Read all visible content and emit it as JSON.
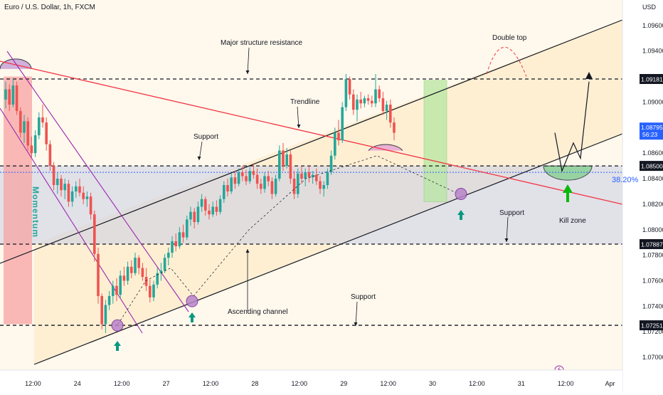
{
  "header": {
    "title": "Euro / U.S. Dollar, 1h, FXCM",
    "currency": "USD"
  },
  "colors": {
    "bull": "#26a69a",
    "bear": "#ef5350",
    "trendline": "#f23645",
    "channel": "#131722",
    "momentum_fill": "#f7a3a3",
    "momentum_label": "#26a69a",
    "demand_fill": "#b7e7a1",
    "zone_fill": "#c8cde6",
    "wedge": "#9c27b0",
    "arrow_up": "#089981",
    "kill_arrow": "#0bb80b",
    "fib_line": "#2962ff",
    "price_tag": "#131722",
    "current_tag": "#2962ff",
    "lightning": "#9c27b0"
  },
  "chart_data": {
    "type": "candlestick",
    "symbol": "Euro / U.S. Dollar",
    "interval": "1h",
    "exchange": "FXCM",
    "ylim": [
      1.069,
      1.098
    ],
    "y_ticks": [
      "1.09600",
      "1.09400",
      "1.09000",
      "1.08600",
      "1.08400",
      "1.08200",
      "1.08000",
      "1.07800",
      "1.07600",
      "1.07400",
      "1.07200",
      "1.07000"
    ],
    "y_tick_values": [
      1.096,
      1.094,
      1.09,
      1.086,
      1.084,
      1.082,
      1.08,
      1.078,
      1.076,
      1.074,
      1.072,
      1.07
    ],
    "x_ticks": [
      "12:00",
      "24",
      "12:00",
      "27",
      "12:00",
      "28",
      "12:00",
      "29",
      "12:00",
      "30",
      "12:00",
      "31",
      "12:00",
      "Apr"
    ],
    "x_tick_positions": [
      2,
      14,
      26,
      38,
      50,
      62,
      74,
      86,
      98,
      110,
      122,
      134,
      146,
      158
    ],
    "candles_ohlc": [
      [
        1.0902,
        1.0916,
        1.0895,
        1.091
      ],
      [
        1.091,
        1.0914,
        1.0893,
        1.0898
      ],
      [
        1.0898,
        1.0918,
        1.0896,
        1.0913
      ],
      [
        1.0913,
        1.0916,
        1.089,
        1.0893
      ],
      [
        1.0893,
        1.0896,
        1.0872,
        1.0876
      ],
      [
        1.0876,
        1.089,
        1.0868,
        1.0885
      ],
      [
        1.0885,
        1.0888,
        1.0862,
        1.0866
      ],
      [
        1.0866,
        1.0873,
        1.0856,
        1.086
      ],
      [
        1.086,
        1.0878,
        1.0857,
        1.0874
      ],
      [
        1.0874,
        1.0892,
        1.0871,
        1.0888
      ],
      [
        1.0888,
        1.0898,
        1.088,
        1.0884
      ],
      [
        1.0884,
        1.0888,
        1.0862,
        1.0867
      ],
      [
        1.0867,
        1.087,
        1.0846,
        1.085
      ],
      [
        1.085,
        1.0853,
        1.0831,
        1.0835
      ],
      [
        1.0835,
        1.0845,
        1.0828,
        1.084
      ],
      [
        1.084,
        1.0843,
        1.0826,
        1.0831
      ],
      [
        1.0831,
        1.084,
        1.0824,
        1.0836
      ],
      [
        1.0836,
        1.0839,
        1.0818,
        1.0822
      ],
      [
        1.0822,
        1.0834,
        1.0818,
        1.083
      ],
      [
        1.083,
        1.0838,
        1.0825,
        1.0834
      ],
      [
        1.0834,
        1.084,
        1.0826,
        1.0829
      ],
      [
        1.0829,
        1.0834,
        1.082,
        1.0824
      ],
      [
        1.0824,
        1.083,
        1.0818,
        1.0826
      ],
      [
        1.0826,
        1.0829,
        1.0808,
        1.0812
      ],
      [
        1.0812,
        1.0815,
        1.0775,
        1.0781
      ],
      [
        1.0781,
        1.0786,
        1.0742,
        1.0748
      ],
      [
        1.0748,
        1.075,
        1.0722,
        1.0726
      ],
      [
        1.0726,
        1.0745,
        1.0719,
        1.0741
      ],
      [
        1.0741,
        1.0752,
        1.0737,
        1.0748
      ],
      [
        1.0748,
        1.076,
        1.0742,
        1.0756
      ],
      [
        1.0756,
        1.0762,
        1.0744,
        1.0749
      ],
      [
        1.0749,
        1.0768,
        1.0746,
        1.0764
      ],
      [
        1.0764,
        1.0771,
        1.0756,
        1.076
      ],
      [
        1.076,
        1.0775,
        1.0757,
        1.0771
      ],
      [
        1.0771,
        1.0776,
        1.0762,
        1.0766
      ],
      [
        1.0766,
        1.0782,
        1.0764,
        1.0778
      ],
      [
        1.0778,
        1.078,
        1.0765,
        1.077
      ],
      [
        1.077,
        1.0774,
        1.076,
        1.0763
      ],
      [
        1.0763,
        1.077,
        1.0752,
        1.0756
      ],
      [
        1.0756,
        1.0761,
        1.0743,
        1.0747
      ],
      [
        1.0747,
        1.076,
        1.0744,
        1.0757
      ],
      [
        1.0757,
        1.077,
        1.0754,
        1.0766
      ],
      [
        1.0766,
        1.0774,
        1.076,
        1.0768
      ],
      [
        1.0768,
        1.0781,
        1.0766,
        1.0778
      ],
      [
        1.0778,
        1.0786,
        1.0772,
        1.0782
      ],
      [
        1.0782,
        1.0795,
        1.0778,
        1.0791
      ],
      [
        1.0791,
        1.0797,
        1.0783,
        1.0787
      ],
      [
        1.0787,
        1.0802,
        1.0785,
        1.0798
      ],
      [
        1.0798,
        1.0804,
        1.079,
        1.0794
      ],
      [
        1.0794,
        1.0811,
        1.0792,
        1.0808
      ],
      [
        1.0808,
        1.0818,
        1.0803,
        1.0814
      ],
      [
        1.0814,
        1.0817,
        1.0801,
        1.0806
      ],
      [
        1.0806,
        1.0822,
        1.0804,
        1.0818
      ],
      [
        1.0818,
        1.0828,
        1.0814,
        1.0824
      ],
      [
        1.0824,
        1.0826,
        1.0811,
        1.0815
      ],
      [
        1.0815,
        1.082,
        1.0808,
        1.0812
      ],
      [
        1.0812,
        1.0822,
        1.081,
        1.0818
      ],
      [
        1.0818,
        1.0823,
        1.0811,
        1.0814
      ],
      [
        1.0814,
        1.0827,
        1.0812,
        1.0824
      ],
      [
        1.0824,
        1.0838,
        1.0821,
        1.0835
      ],
      [
        1.0835,
        1.084,
        1.0826,
        1.083
      ],
      [
        1.083,
        1.0844,
        1.0828,
        1.0841
      ],
      [
        1.0841,
        1.0846,
        1.0832,
        1.0836
      ],
      [
        1.0836,
        1.0848,
        1.0834,
        1.0845
      ],
      [
        1.0845,
        1.085,
        1.0838,
        1.0842
      ],
      [
        1.0842,
        1.0847,
        1.0835,
        1.0838
      ],
      [
        1.0838,
        1.0849,
        1.0836,
        1.0846
      ],
      [
        1.0846,
        1.0852,
        1.084,
        1.0843
      ],
      [
        1.0843,
        1.0848,
        1.0832,
        1.0836
      ],
      [
        1.0836,
        1.084,
        1.0828,
        1.0832
      ],
      [
        1.0832,
        1.0845,
        1.0829,
        1.0842
      ],
      [
        1.0842,
        1.0846,
        1.0834,
        1.0838
      ],
      [
        1.0838,
        1.0841,
        1.0824,
        1.0828
      ],
      [
        1.0828,
        1.0843,
        1.0826,
        1.084
      ],
      [
        1.084,
        1.0866,
        1.0838,
        1.0862
      ],
      [
        1.0862,
        1.0868,
        1.0846,
        1.085
      ],
      [
        1.085,
        1.0864,
        1.0848,
        1.0859
      ],
      [
        1.0859,
        1.0862,
        1.0836,
        1.084
      ],
      [
        1.084,
        1.0846,
        1.0824,
        1.0828
      ],
      [
        1.0828,
        1.0848,
        1.0825,
        1.0844
      ],
      [
        1.0844,
        1.085,
        1.0836,
        1.084
      ],
      [
        1.084,
        1.0848,
        1.0834,
        1.0845
      ],
      [
        1.0845,
        1.085,
        1.0837,
        1.0841
      ],
      [
        1.0841,
        1.0846,
        1.0836,
        1.0843
      ],
      [
        1.0843,
        1.0848,
        1.0835,
        1.0838
      ],
      [
        1.0838,
        1.0842,
        1.0828,
        1.0832
      ],
      [
        1.0832,
        1.0838,
        1.0826,
        1.0835
      ],
      [
        1.0835,
        1.0848,
        1.0832,
        1.0845
      ],
      [
        1.0845,
        1.0862,
        1.0843,
        1.0858
      ],
      [
        1.0858,
        1.088,
        1.0855,
        1.0876
      ],
      [
        1.0876,
        1.0886,
        1.0866,
        1.087
      ],
      [
        1.087,
        1.09,
        1.0868,
        1.0896
      ],
      [
        1.0896,
        1.0922,
        1.0893,
        1.0918
      ],
      [
        1.0918,
        1.092,
        1.0902,
        1.0906
      ],
      [
        1.0906,
        1.091,
        1.089,
        1.0894
      ],
      [
        1.0894,
        1.0906,
        1.0885,
        1.0902
      ],
      [
        1.0902,
        1.0908,
        1.0895,
        1.0899
      ],
      [
        1.0899,
        1.0905,
        1.0896,
        1.0903
      ],
      [
        1.0903,
        1.0906,
        1.0898,
        1.0901
      ],
      [
        1.0901,
        1.0905,
        1.0896,
        1.0899
      ],
      [
        1.0899,
        1.0922,
        1.0896,
        1.091
      ],
      [
        1.091,
        1.0913,
        1.09,
        1.0903
      ],
      [
        1.0903,
        1.0908,
        1.089,
        1.0893
      ],
      [
        1.0893,
        1.0901,
        1.0886,
        1.0898
      ],
      [
        1.0898,
        1.0902,
        1.088,
        1.0884
      ],
      [
        1.0884,
        1.0888,
        1.087,
        1.0876
      ]
    ],
    "levels": [
      {
        "price": 1.09181,
        "label": "1.09181"
      },
      {
        "price": 1.085,
        "label": "1.08500"
      },
      {
        "price": 1.07887,
        "label": "1.07887"
      },
      {
        "price": 1.07251,
        "label": "1.07251"
      }
    ],
    "fib_level": {
      "price": 1.0845,
      "label": "38.20%"
    },
    "current_price": {
      "price": 1.08795,
      "label": "1.08795",
      "countdown": "56:23"
    },
    "annotations": {
      "major_resistance": "Major structure resistance",
      "double_top": "Double top",
      "trendline": "Trendline",
      "support_upper": "Support",
      "support_mid": "Support",
      "support_low": "Support",
      "ascending_channel": "Ascending channel",
      "kill_zone": "Kill zone",
      "momentum": "Momentum"
    }
  }
}
